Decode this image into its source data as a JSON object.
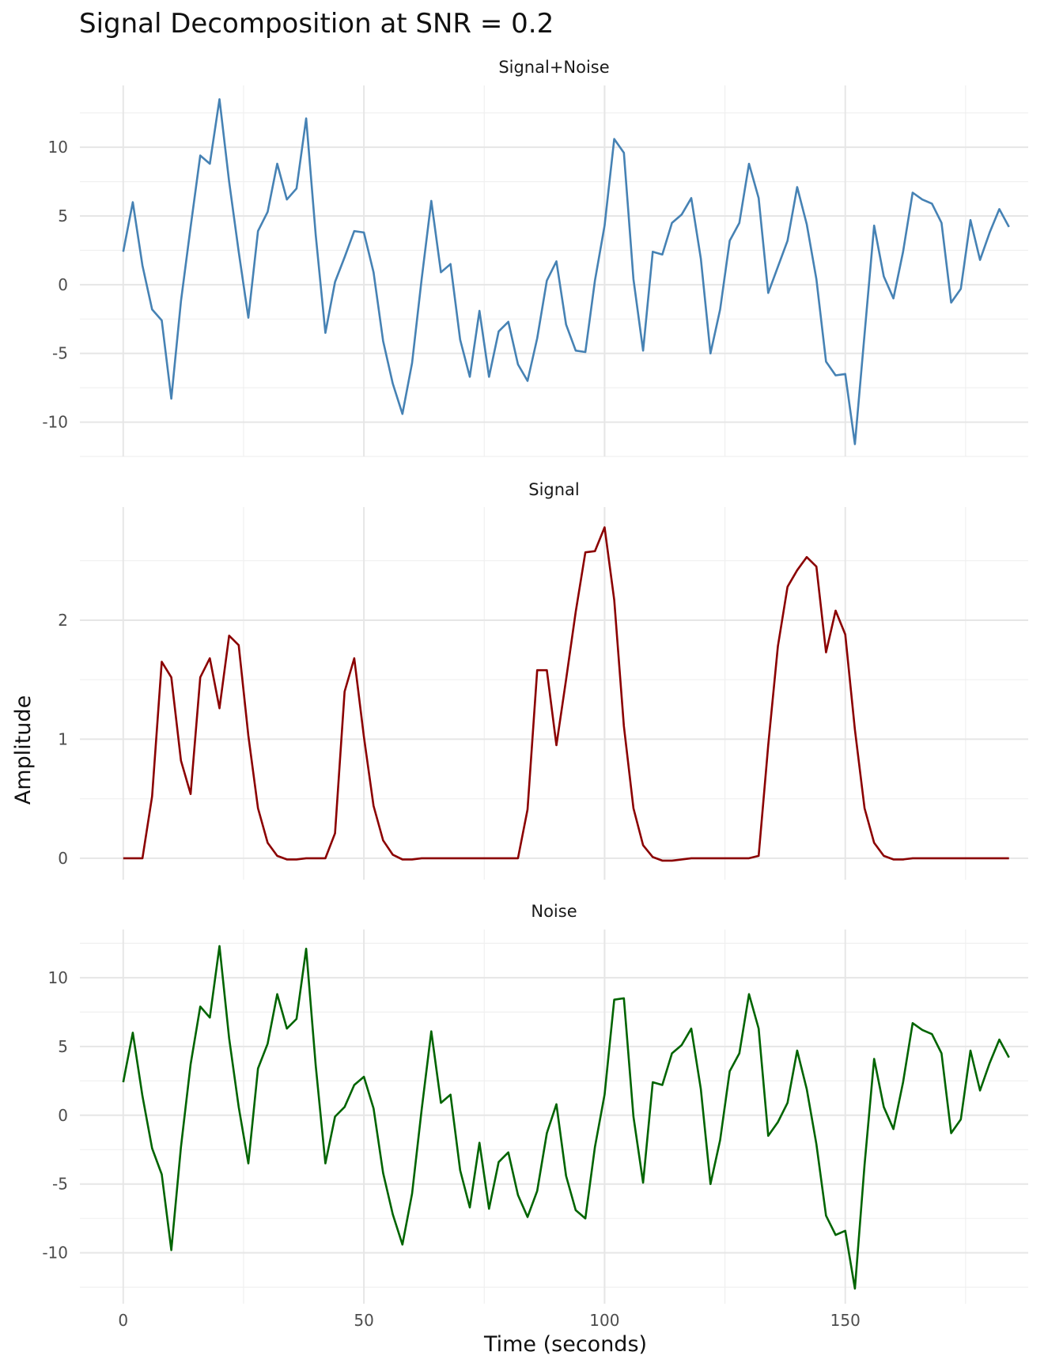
{
  "title": "Signal Decomposition at SNR = 0.2",
  "chart_data": {
    "type": "line",
    "xlabel": "Time (seconds)",
    "ylabel": "Amplitude",
    "x_ticks": [
      "0",
      "50",
      "100",
      "150"
    ],
    "x_tick_values": [
      0,
      50,
      100,
      150
    ],
    "xlim": [
      -9,
      188
    ],
    "grid": true,
    "x": [
      0,
      2,
      4,
      6,
      8,
      10,
      12,
      14,
      16,
      18,
      20,
      22,
      24,
      26,
      28,
      30,
      32,
      34,
      36,
      38,
      40,
      42,
      44,
      46,
      48,
      50,
      52,
      54,
      56,
      58,
      60,
      62,
      64,
      66,
      68,
      70,
      72,
      74,
      76,
      78,
      80,
      82,
      84,
      86,
      88,
      90,
      92,
      94,
      96,
      98,
      100,
      102,
      104,
      106,
      108,
      110,
      112,
      114,
      116,
      118,
      120,
      122,
      124,
      126,
      128,
      130,
      132,
      134,
      136,
      138,
      140,
      142,
      144,
      146,
      148,
      150,
      152,
      154,
      156,
      158,
      160,
      162,
      164,
      166,
      168,
      170,
      172,
      174,
      176,
      178,
      180,
      182,
      184
    ],
    "panels": [
      {
        "name": "Signal+Noise",
        "color": "#4682B4",
        "ylim": [
          -12.5,
          14.5
        ],
        "y_ticks": [
          "-10",
          "-5",
          "0",
          "5",
          "10"
        ],
        "y_tick_values": [
          -10,
          -5,
          0,
          5,
          10
        ],
        "values": [
          2.4,
          6.0,
          1.4,
          -1.8,
          -2.6,
          -8.3,
          -1.2,
          4.2,
          9.4,
          8.8,
          13.5,
          7.5,
          2.4,
          -2.4,
          3.9,
          5.3,
          8.8,
          6.2,
          7.0,
          12.1,
          3.6,
          -3.5,
          0.2,
          2.0,
          3.9,
          3.8,
          0.9,
          -4.1,
          -7.2,
          -9.4,
          -5.7,
          0.4,
          6.1,
          0.9,
          1.5,
          -4.0,
          -6.7,
          -1.9,
          -6.7,
          -3.4,
          -2.7,
          -5.8,
          -7.0,
          -3.9,
          0.3,
          1.7,
          -2.9,
          -4.8,
          -4.9,
          0.3,
          4.3,
          10.6,
          9.6,
          0.4,
          -4.8,
          2.4,
          2.2,
          4.5,
          5.1,
          6.3,
          1.9,
          -5.0,
          -1.8,
          3.2,
          4.5,
          8.8,
          6.3,
          -0.6,
          1.3,
          3.2,
          7.1,
          4.4,
          0.4,
          -5.6,
          -6.6,
          -6.5,
          -11.6,
          -3.6,
          4.3,
          0.6,
          -1.0,
          2.4,
          6.7,
          6.2,
          5.9,
          4.5,
          -1.3,
          -0.3,
          4.7,
          1.8,
          3.8,
          5.5,
          4.2
        ]
      },
      {
        "name": "Signal",
        "color": "#8B0000",
        "ylim": [
          -0.18,
          2.95
        ],
        "y_ticks": [
          "0",
          "1",
          "2"
        ],
        "y_tick_values": [
          0,
          1,
          2
        ],
        "values": [
          0,
          0,
          0,
          0.52,
          1.65,
          1.52,
          0.82,
          0.54,
          1.52,
          1.68,
          1.26,
          1.87,
          1.79,
          1.03,
          0.42,
          0.13,
          0.02,
          -0.01,
          -0.01,
          0,
          0,
          0,
          0.21,
          1.4,
          1.68,
          1.02,
          0.44,
          0.15,
          0.03,
          -0.01,
          -0.01,
          0,
          0,
          0,
          0,
          0,
          0,
          0,
          0,
          0,
          0,
          0,
          0.41,
          1.58,
          1.58,
          0.95,
          1.5,
          2.07,
          2.57,
          2.58,
          2.78,
          2.17,
          1.11,
          0.42,
          0.11,
          0.01,
          -0.02,
          -0.02,
          -0.01,
          0,
          0,
          0,
          0,
          0,
          0,
          0,
          0.02,
          0.95,
          1.78,
          2.28,
          2.42,
          2.53,
          2.45,
          1.73,
          2.08,
          1.88,
          1.08,
          0.42,
          0.13,
          0.02,
          -0.01,
          -0.01,
          0,
          0,
          0,
          0,
          0,
          0,
          0,
          0,
          0,
          0,
          0
        ]
      },
      {
        "name": "Noise",
        "color": "#006400",
        "ylim": [
          -13.7,
          13.5
        ],
        "y_ticks": [
          "-10",
          "-5",
          "0",
          "5",
          "10"
        ],
        "y_tick_values": [
          -10,
          -5,
          0,
          5,
          10
        ],
        "values": [
          2.4,
          6.0,
          1.4,
          -2.4,
          -4.3,
          -9.8,
          -2.3,
          3.7,
          7.9,
          7.1,
          12.3,
          5.6,
          0.6,
          -3.5,
          3.4,
          5.2,
          8.8,
          6.3,
          7.0,
          12.1,
          3.6,
          -3.5,
          -0.1,
          0.6,
          2.2,
          2.8,
          0.5,
          -4.2,
          -7.2,
          -9.4,
          -5.7,
          0.4,
          6.1,
          0.9,
          1.5,
          -4.0,
          -6.7,
          -2.0,
          -6.8,
          -3.4,
          -2.7,
          -5.8,
          -7.4,
          -5.5,
          -1.3,
          0.8,
          -4.4,
          -6.9,
          -7.5,
          -2.3,
          1.5,
          8.4,
          8.5,
          -0.1,
          -4.9,
          2.4,
          2.2,
          4.5,
          5.1,
          6.3,
          1.9,
          -5.0,
          -1.8,
          3.2,
          4.5,
          8.8,
          6.3,
          -1.5,
          -0.5,
          0.9,
          4.7,
          1.9,
          -2.1,
          -7.3,
          -8.7,
          -8.4,
          -12.6,
          -3.6,
          4.1,
          0.6,
          -1.0,
          2.4,
          6.7,
          6.2,
          5.9,
          4.5,
          -1.3,
          -0.3,
          4.7,
          1.8,
          3.8,
          5.5,
          4.2
        ]
      }
    ]
  }
}
